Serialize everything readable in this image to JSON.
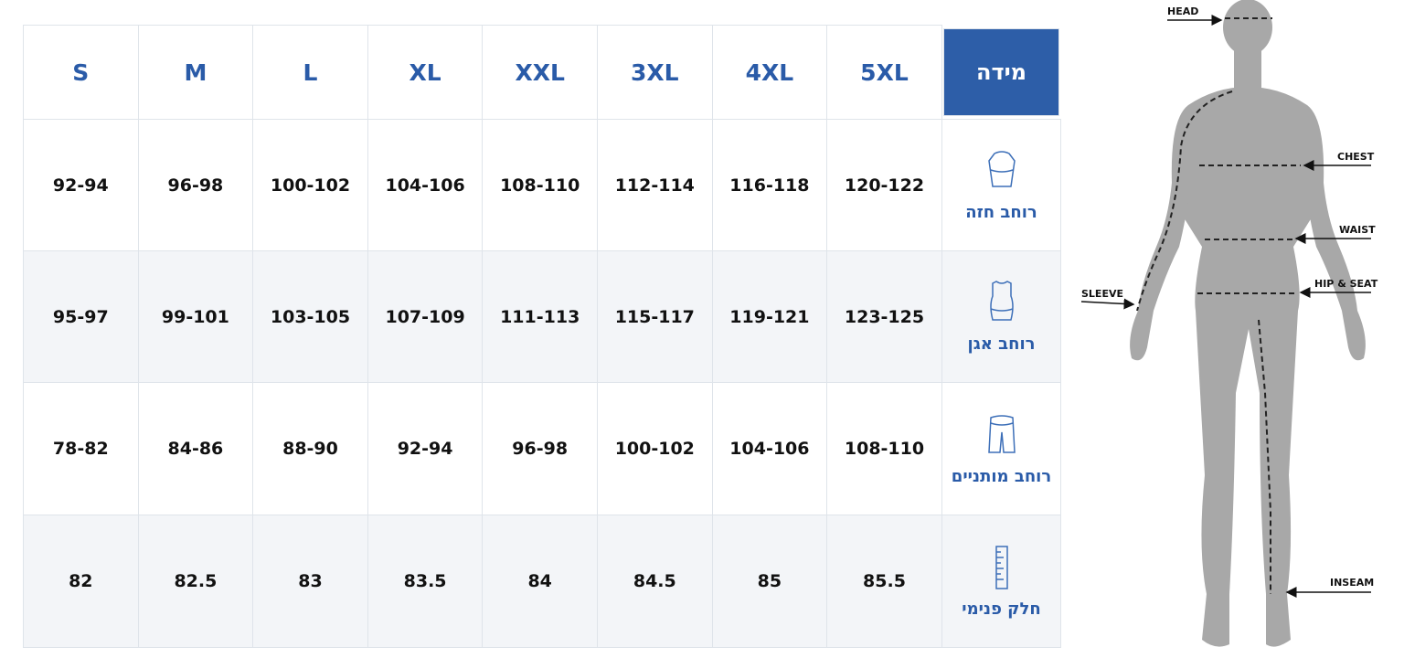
{
  "table": {
    "sizes": [
      "S",
      "M",
      "L",
      "XL",
      "XXL",
      "3XL",
      "4XL",
      "5XL"
    ],
    "size_header": "מידה",
    "rows": [
      {
        "label": "רוחב חזה",
        "values": [
          "92-94",
          "96-98",
          "100-102",
          "104-106",
          "108-110",
          "112-114",
          "116-118",
          "120-122"
        ]
      },
      {
        "label": "רוחב אגן",
        "values": [
          "95-97",
          "99-101",
          "103-105",
          "107-109",
          "111-113",
          "115-117",
          "119-121",
          "123-125"
        ]
      },
      {
        "label": "רוחב מותניים",
        "values": [
          "78-82",
          "84-86",
          "88-90",
          "92-94",
          "96-98",
          "100-102",
          "104-106",
          "108-110"
        ]
      },
      {
        "label": "חלק פנימי",
        "values": [
          "82",
          "82.5",
          "83",
          "83.5",
          "84",
          "84.5",
          "85",
          "85.5"
        ]
      }
    ]
  },
  "figure": {
    "head": "HEAD",
    "chest": "CHEST",
    "waist": "WAIST",
    "hip": "HIP & SEAT",
    "sleeve": "SLEEVE",
    "inseam": "INSEAM"
  }
}
